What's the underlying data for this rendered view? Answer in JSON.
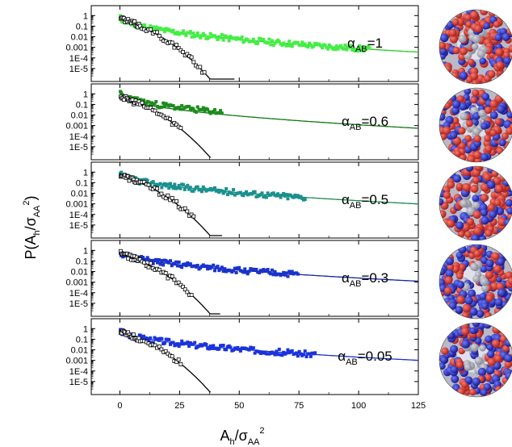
{
  "chart_data": {
    "type": "scatter",
    "xlabel": {
      "main": "A",
      "sub1": "h",
      "mid": "/σ",
      "sub2": "AA",
      "sup": "2"
    },
    "ylabel": {
      "main": "P(A",
      "sub1": "h",
      "mid": "/σ",
      "sub2": "AA",
      "sup": "2",
      "end": ")"
    },
    "xlim": [
      -12,
      125
    ],
    "ylim": [
      1e-06,
      1.5
    ],
    "y_scale": "log",
    "x_ticks": [
      "0",
      "25",
      "50",
      "75",
      "100",
      "125"
    ],
    "x_tick_values": [
      0,
      25,
      50,
      75,
      100,
      125
    ],
    "y_ticks": [
      "1",
      "0.1",
      "0.01",
      "0.001",
      "1E-4",
      "1E-5"
    ],
    "y_tick_values": [
      1,
      0.1,
      0.01,
      0.001,
      0.0001,
      1e-05
    ],
    "grid": false,
    "panels": [
      {
        "alpha_base": "α",
        "alpha_sub": "AB",
        "alpha_val": "=1",
        "color": "#44ee44",
        "line_color": "#22cc22",
        "fit": {
          "a": 0.8,
          "b": 0.7,
          "c": 0.0,
          "d": 3.6e-05
        },
        "plateau": 4.3e-05,
        "plateau_end": 105,
        "black_end": 36,
        "seed": 11
      },
      {
        "alpha_base": "α",
        "alpha_sub": "AB",
        "alpha_val": "=0.6",
        "color": "#1c8c1c",
        "line_color": "#117711",
        "fit": {
          "a": 0.8,
          "b": 0.65,
          "c": 0.0825,
          "d": 0.0
        },
        "plateau": null,
        "plateau_end": 43,
        "black_end": 26,
        "seed": 23
      },
      {
        "alpha_base": "α",
        "alpha_sub": "AB",
        "alpha_val": "=0.5",
        "color": "#1a9090",
        "line_color": "#1a8a50",
        "fit": {
          "a": 0.8,
          "b": 0.6,
          "c": 0.02,
          "d": 3e-06
        },
        "plateau": 2.5e-05,
        "plateau_end": 78,
        "black_end": 31,
        "seed": 37
      },
      {
        "alpha_base": "α",
        "alpha_sub": "AB",
        "alpha_val": "=0.3",
        "color": "#1a33cc",
        "line_color": "#1122aa",
        "fit": {
          "a": 0.8,
          "b": 0.58,
          "c": 0.02,
          "d": 2.5e-06
        },
        "plateau": 1.8e-05,
        "plateau_end": 75,
        "black_end": 30,
        "seed": 51
      },
      {
        "alpha_base": "α",
        "alpha_sub": "AB",
        "alpha_val": "=0.05",
        "color": "#1a33dd",
        "line_color": "#1a33cc",
        "fit": {
          "a": 0.8,
          "b": 0.6,
          "c": 0.0,
          "d": 4e-05
        },
        "plateau": 4.8e-05,
        "plateau_end": 82,
        "black_end": 26,
        "seed": 67
      }
    ],
    "spheres": [
      {
        "blue": 0.4,
        "seed": 3
      },
      {
        "blue": 0.45,
        "seed": 9
      },
      {
        "blue": 0.3,
        "seed": 14
      },
      {
        "blue": 0.55,
        "seed": 21
      },
      {
        "blue": 0.55,
        "seed": 33
      }
    ]
  }
}
